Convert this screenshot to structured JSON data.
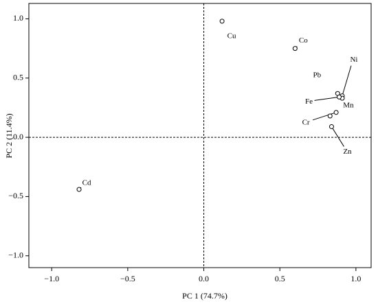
{
  "chart_data": {
    "type": "scatter",
    "x_label": "PC 1 (74.7%)",
    "y_label": "PC 2  (11.4%)",
    "labels": [
      "Cu",
      "Co",
      "Pb",
      "Ni",
      "Mn",
      "Fe",
      "Cr",
      null,
      "Zn",
      "Cd"
    ],
    "x": [
      0.12,
      0.6,
      0.88,
      0.91,
      0.91,
      0.89,
      0.87,
      0.83,
      0.84,
      -0.82
    ],
    "values": [
      0.98,
      0.75,
      0.37,
      0.35,
      0.33,
      0.34,
      0.21,
      0.18,
      0.09,
      -0.44
    ],
    "xlim": [
      -1.15,
      1.1
    ],
    "ylim": [
      -1.1,
      1.13
    ],
    "xticks": [
      {
        "value": -1,
        "label": "−1.0"
      },
      {
        "value": -0.5,
        "label": "−0.5"
      },
      {
        "value": 0,
        "label": "0.0"
      },
      {
        "value": 0.5,
        "label": "0.5"
      },
      {
        "value": 1,
        "label": "1.0"
      }
    ],
    "yticks": [
      {
        "value": -1,
        "label": "−1.0"
      },
      {
        "value": -0.5,
        "label": "−0.5"
      },
      {
        "value": 0,
        "label": "0.0"
      },
      {
        "value": 0.5,
        "label": "0.5"
      },
      {
        "value": 1,
        "label": "1.0"
      }
    ],
    "zero_lines": true,
    "color": "#000000"
  }
}
